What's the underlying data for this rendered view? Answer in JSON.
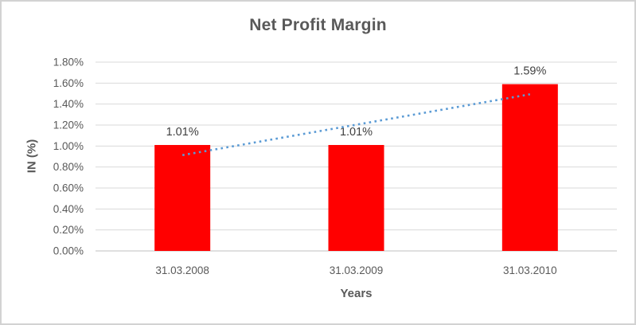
{
  "frame": {
    "border_color": "#d2d2d2",
    "background": "#ffffff"
  },
  "chart_data": {
    "type": "bar",
    "title": "Net Profit Margin",
    "xlabel": "Years",
    "ylabel": "IN (%)",
    "categories": [
      "31.03.2008",
      "31.03.2009",
      "31.03.2010"
    ],
    "values": [
      1.01,
      1.01,
      1.59
    ],
    "data_labels": [
      "1.01%",
      "1.01%",
      "1.59%"
    ],
    "ylim": [
      0,
      1.8
    ],
    "ytick_step": 0.2,
    "ytick_labels": [
      "0.00%",
      "0.20%",
      "0.40%",
      "0.60%",
      "0.80%",
      "1.00%",
      "1.20%",
      "1.40%",
      "1.60%",
      "1.80%"
    ],
    "grid": true,
    "legend": "none",
    "bar_color": "#ff0000",
    "trendline": {
      "type": "linear",
      "style": "dotted",
      "color": "#5b9bd5",
      "fitted_values": [
        0.913,
        1.203,
        1.493
      ]
    },
    "colors": {
      "gridline": "#d9d9d9",
      "axis_line": "#bfbfbf",
      "tick_text": "#595959",
      "title_text": "#595959",
      "data_label_text": "#404040"
    }
  }
}
